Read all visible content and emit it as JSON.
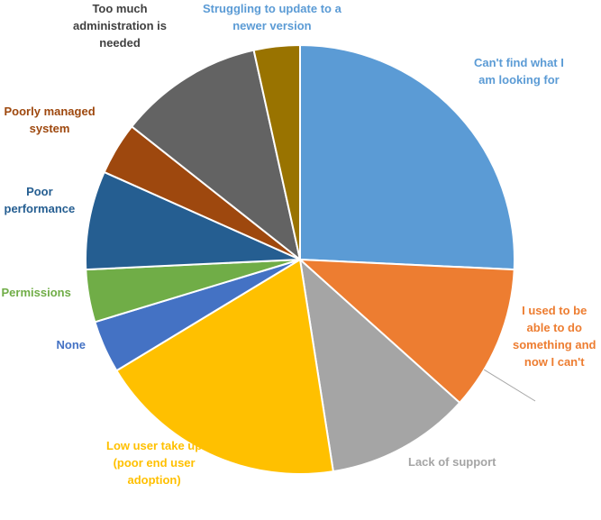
{
  "chart_data": {
    "type": "pie",
    "start_angle": "12 o'clock",
    "direction": "clockwise",
    "categories": [
      "Can't find what I am looking for",
      "I used to be able to do something and now I can't",
      "Lack of support",
      "Low user take up (poor end user adoption)",
      "None",
      "Permissions",
      "Poor performance",
      "Poorly managed system",
      "Too much administration is needed",
      "Struggling to update to a newer version"
    ],
    "values": [
      26,
      11,
      11,
      19,
      4,
      4,
      7.5,
      4,
      11,
      3.5
    ],
    "value_unit": "percent of total (estimated)",
    "colors": [
      "#5b9bd5",
      "#ed7d31",
      "#a5a5a5",
      "#ffc000",
      "#4472c4",
      "#70ad47",
      "#255e91",
      "#9e480e",
      "#636363",
      "#997300"
    ],
    "label_colors": [
      "#5b9bd5",
      "#ed7d31",
      "#a5a5a5",
      "#ffc000",
      "#4472c4",
      "#70ad47",
      "#255e91",
      "#9e480e",
      "#404040",
      "#5b9bd5"
    ],
    "labels": [
      [
        "Can't find what I",
        "am looking for"
      ],
      [
        "I used to be",
        "able to do",
        "something and",
        "now I can't"
      ],
      [
        "Lack of support"
      ],
      [
        "Low user take up",
        "(poor end user",
        "adoption)"
      ],
      [
        "None"
      ],
      [
        "Permissions"
      ],
      [
        "Poor",
        "performance"
      ],
      [
        "Poorly managed",
        "system"
      ],
      [
        "Too much",
        "administration is",
        "needed"
      ],
      [
        "Struggling to update to a",
        "newer version"
      ]
    ],
    "leader_lines": [
      "I used to be able to do something and now I can't"
    ],
    "legend": "none",
    "title": ""
  }
}
